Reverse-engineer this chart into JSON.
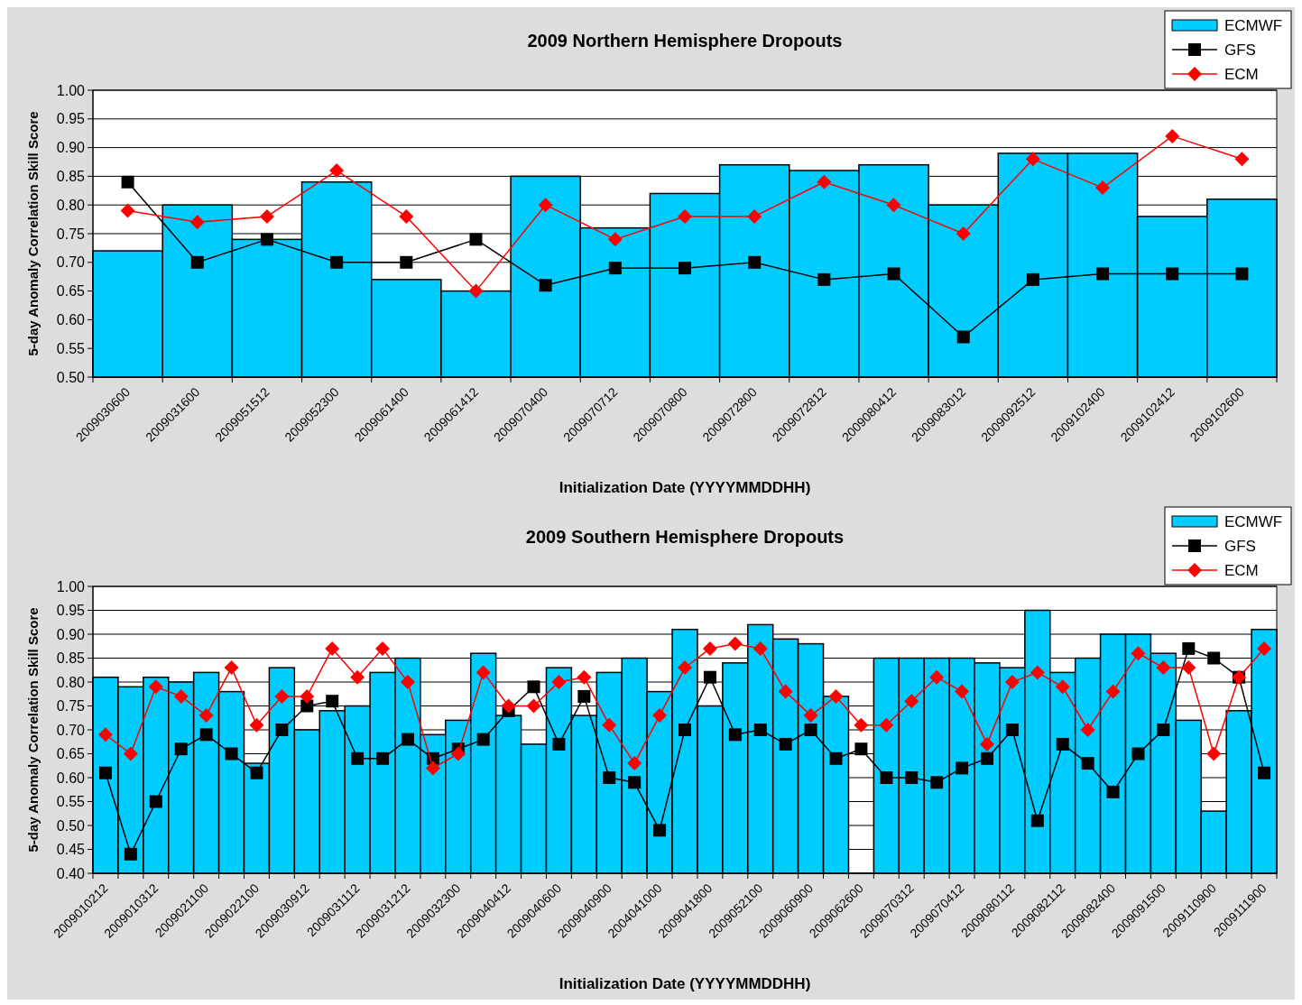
{
  "chart_data": [
    {
      "type": "bar",
      "title": "2009 Northern Hemisphere Dropouts",
      "xlabel": "Initialization Date (YYYYMMDDHH)",
      "ylabel": "5-day Anomaly Correlation Skill Score",
      "categories": [
        "2009030600",
        "2009031600",
        "2009051512",
        "2009052300",
        "2009061400",
        "2009061412",
        "2009070400",
        "2009070712",
        "2009070800",
        "2009072800",
        "2009072812",
        "2009080412",
        "2009083012",
        "2009092512",
        "2009102400",
        "2009102412",
        "2009102600"
      ],
      "series": [
        {
          "name": "ECMWF",
          "color": "#00ccff",
          "values": [
            0.72,
            0.8,
            0.74,
            0.84,
            0.67,
            0.65,
            0.85,
            0.76,
            0.82,
            0.87,
            0.86,
            0.87,
            0.8,
            0.89,
            0.89,
            0.78,
            0.81
          ]
        },
        {
          "name": "GFS",
          "type": "line",
          "color": "#000000",
          "marker": "square",
          "values": [
            0.84,
            0.7,
            0.74,
            0.7,
            0.7,
            0.74,
            0.66,
            0.69,
            0.69,
            0.7,
            0.67,
            0.68,
            0.57,
            0.67,
            0.68,
            0.68,
            0.68
          ]
        },
        {
          "name": "ECM",
          "type": "line",
          "color": "#ff0000",
          "marker": "diamond",
          "values": [
            0.79,
            0.77,
            0.78,
            0.86,
            0.78,
            0.65,
            0.8,
            0.74,
            0.78,
            0.78,
            0.84,
            0.8,
            0.75,
            0.88,
            0.83,
            0.92,
            0.88
          ]
        }
      ],
      "ylim": [
        0.5,
        1.0
      ],
      "yticks": [
        {
          "value": 0.5,
          "label": "0.50"
        },
        {
          "value": 0.55,
          "label": "0.55"
        },
        {
          "value": 0.6,
          "label": "0.60"
        },
        {
          "value": 0.65,
          "label": "0.65"
        },
        {
          "value": 0.7,
          "label": "0.70"
        },
        {
          "value": 0.75,
          "label": "0.75"
        },
        {
          "value": 0.8,
          "label": "0.80"
        },
        {
          "value": 0.85,
          "label": "0.85"
        },
        {
          "value": 0.9,
          "label": "0.90"
        },
        {
          "value": 0.95,
          "label": "0.95"
        },
        {
          "value": 1.0,
          "label": "1.00"
        }
      ],
      "grid": "y",
      "legend": "top right"
    },
    {
      "type": "bar",
      "title": "2009 Southern Hemisphere Dropouts",
      "xlabel": "Initialization Date (YYYYMMDDHH)",
      "ylabel": "5-day Anomaly Correlation Skill Score",
      "categories": [
        "2009010212",
        null,
        "2009010312",
        null,
        "2009021100",
        null,
        "2009022100",
        null,
        "2009030912",
        null,
        "2009031112",
        null,
        "2009031212",
        null,
        "2009032300",
        null,
        "2009040412",
        null,
        "2009040600",
        null,
        "2009040900",
        null,
        "2004041000",
        null,
        "2009041800",
        null,
        "2009052100",
        null,
        "2009060900",
        null,
        "2009062600",
        null,
        "2009070312",
        null,
        "2009070412",
        null,
        "2009080112",
        null,
        "2009082112",
        null,
        "2009082400",
        null,
        "2009091500",
        null,
        "2009110900",
        null,
        "2009111900"
      ],
      "series": [
        {
          "name": "ECMWF",
          "color": "#00ccff",
          "values": [
            0.81,
            0.79,
            0.81,
            0.8,
            0.82,
            0.78,
            0.63,
            0.83,
            0.7,
            0.74,
            0.75,
            0.82,
            0.85,
            0.69,
            0.72,
            0.86,
            0.73,
            0.67,
            0.83,
            0.73,
            0.82,
            0.85,
            0.78,
            0.91,
            0.75,
            0.84,
            0.92,
            0.89,
            0.88,
            0.77,
            null,
            0.85,
            0.85,
            0.85,
            0.85,
            0.84,
            0.83,
            0.95,
            0.82,
            0.85,
            0.9,
            0.9,
            0.86,
            0.72,
            0.53,
            0.74,
            0.91
          ]
        },
        {
          "name": "GFS",
          "type": "line",
          "color": "#000000",
          "marker": "square",
          "values": [
            0.61,
            0.44,
            0.55,
            0.66,
            0.69,
            0.65,
            0.61,
            0.7,
            0.75,
            0.76,
            0.64,
            0.64,
            0.68,
            0.64,
            0.66,
            0.68,
            0.74,
            0.79,
            0.67,
            0.77,
            0.6,
            0.59,
            0.49,
            0.7,
            0.81,
            0.69,
            0.7,
            0.67,
            0.7,
            0.64,
            0.66,
            0.6,
            0.6,
            0.59,
            0.62,
            0.64,
            0.7,
            0.51,
            0.67,
            0.63,
            0.57,
            0.65,
            0.7,
            0.87,
            0.85,
            0.81,
            0.61
          ]
        },
        {
          "name": "ECM",
          "type": "line",
          "color": "#ff0000",
          "marker": "diamond",
          "values": [
            0.69,
            0.65,
            0.79,
            0.77,
            0.73,
            0.83,
            0.71,
            0.77,
            0.77,
            0.87,
            0.81,
            0.87,
            0.8,
            0.62,
            0.65,
            0.82,
            0.75,
            0.75,
            0.8,
            0.81,
            0.71,
            0.63,
            0.73,
            0.83,
            0.87,
            0.88,
            0.87,
            0.78,
            0.73,
            0.77,
            0.71,
            0.71,
            0.76,
            0.81,
            0.78,
            0.67,
            0.8,
            0.82,
            0.79,
            0.7,
            0.78,
            0.86,
            0.83,
            0.83,
            0.65,
            0.81,
            0.87
          ]
        }
      ],
      "ylim": [
        0.4,
        1.0
      ],
      "yticks": [
        {
          "value": 0.4,
          "label": "0.40"
        },
        {
          "value": 0.45,
          "label": "0.45"
        },
        {
          "value": 0.5,
          "label": "0.50"
        },
        {
          "value": 0.55,
          "label": "0.55"
        },
        {
          "value": 0.6,
          "label": "0.60"
        },
        {
          "value": 0.65,
          "label": "0.65"
        },
        {
          "value": 0.7,
          "label": "0.70"
        },
        {
          "value": 0.75,
          "label": "0.75"
        },
        {
          "value": 0.8,
          "label": "0.80"
        },
        {
          "value": 0.85,
          "label": "0.85"
        },
        {
          "value": 0.9,
          "label": "0.90"
        },
        {
          "value": 0.95,
          "label": "0.95"
        },
        {
          "value": 1.0,
          "label": "1.00"
        }
      ],
      "grid": "y",
      "legend": "top right"
    }
  ]
}
